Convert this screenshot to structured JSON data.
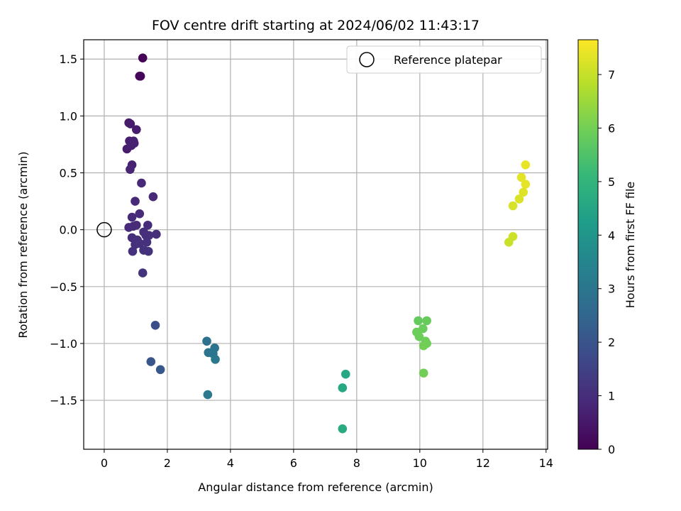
{
  "chart_data": {
    "type": "scatter",
    "title": "FOV centre drift starting at 2024/06/02 11:43:17",
    "xlabel": "Angular distance from reference (arcmin)",
    "ylabel": "Rotation from reference (arcmin)",
    "xlim": [
      -0.65,
      14.05
    ],
    "ylim": [
      -1.93,
      1.67
    ],
    "xticks": [
      0,
      2,
      4,
      6,
      8,
      10,
      12,
      14
    ],
    "xtick_labels": [
      "0",
      "2",
      "4",
      "6",
      "8",
      "10",
      "12",
      "14"
    ],
    "yticks": [
      1.5,
      1.0,
      0.5,
      0.0,
      -0.5,
      -1.0,
      -1.5
    ],
    "ytick_labels": [
      "1.5",
      "1.0",
      "0.5",
      "0.0",
      "−0.5",
      "−1.0",
      "−1.5"
    ],
    "grid": true,
    "legend": {
      "position": "top-right",
      "entries": [
        "Reference platepar"
      ]
    },
    "reference_point": {
      "x": 0,
      "y": 0
    },
    "colorbar": {
      "label": "Hours from first FF file",
      "colormap": "viridis",
      "range": [
        0,
        7.65
      ],
      "ticks": [
        0,
        1,
        2,
        3,
        4,
        5,
        6,
        7
      ],
      "tick_labels": [
        "0",
        "1",
        "2",
        "3",
        "4",
        "5",
        "6",
        "7"
      ]
    },
    "colors": {
      "viridis_stops": [
        "#440154",
        "#482878",
        "#3e4989",
        "#31688e",
        "#26828e",
        "#1f9e89",
        "#35b779",
        "#6ece58",
        "#b5de2b",
        "#fde725"
      ],
      "grid": "#b0b0b0",
      "axes": "#000000"
    },
    "series": [
      {
        "values": [
          {
            "x": 1.22,
            "y": 1.51,
            "h": 0.05
          },
          {
            "x": 1.12,
            "y": 1.35,
            "h": 0.1
          },
          {
            "x": 1.15,
            "y": 1.35,
            "h": 0.12
          },
          {
            "x": 0.78,
            "y": 0.94,
            "h": 0.55
          },
          {
            "x": 0.83,
            "y": 0.93,
            "h": 0.58
          },
          {
            "x": 1.02,
            "y": 0.88,
            "h": 0.62
          },
          {
            "x": 0.72,
            "y": 0.71,
            "h": 0.6
          },
          {
            "x": 0.8,
            "y": 0.78,
            "h": 0.64
          },
          {
            "x": 0.86,
            "y": 0.74,
            "h": 0.66
          },
          {
            "x": 0.93,
            "y": 0.78,
            "h": 0.7
          },
          {
            "x": 0.95,
            "y": 0.76,
            "h": 0.72
          },
          {
            "x": 0.88,
            "y": 0.57,
            "h": 0.75
          },
          {
            "x": 0.82,
            "y": 0.53,
            "h": 0.78
          },
          {
            "x": 1.18,
            "y": 0.41,
            "h": 0.85
          },
          {
            "x": 0.98,
            "y": 0.25,
            "h": 0.88
          },
          {
            "x": 1.55,
            "y": 0.29,
            "h": 0.92
          },
          {
            "x": 1.12,
            "y": 0.14,
            "h": 0.9
          },
          {
            "x": 0.88,
            "y": 0.11,
            "h": 0.92
          },
          {
            "x": 0.78,
            "y": 0.02,
            "h": 0.94
          },
          {
            "x": 0.92,
            "y": 0.03,
            "h": 0.95
          },
          {
            "x": 1.02,
            "y": 0.04,
            "h": 0.96
          },
          {
            "x": 1.38,
            "y": 0.04,
            "h": 0.98
          },
          {
            "x": 1.65,
            "y": -0.04,
            "h": 1.0
          },
          {
            "x": 0.88,
            "y": -0.07,
            "h": 1.0
          },
          {
            "x": 1.05,
            "y": -0.09,
            "h": 1.02
          },
          {
            "x": 1.25,
            "y": -0.02,
            "h": 1.03
          },
          {
            "x": 1.32,
            "y": -0.05,
            "h": 1.04
          },
          {
            "x": 1.42,
            "y": -0.05,
            "h": 1.05
          },
          {
            "x": 0.98,
            "y": -0.13,
            "h": 1.06
          },
          {
            "x": 1.12,
            "y": -0.12,
            "h": 1.07
          },
          {
            "x": 1.35,
            "y": -0.11,
            "h": 1.08
          },
          {
            "x": 0.9,
            "y": -0.19,
            "h": 1.09
          },
          {
            "x": 1.25,
            "y": -0.18,
            "h": 1.1
          },
          {
            "x": 1.4,
            "y": -0.19,
            "h": 1.11
          },
          {
            "x": 1.22,
            "y": -0.38,
            "h": 1.15
          },
          {
            "x": 1.62,
            "y": -0.84,
            "h": 1.85
          },
          {
            "x": 1.48,
            "y": -1.16,
            "h": 2.05
          },
          {
            "x": 1.78,
            "y": -1.23,
            "h": 2.1
          },
          {
            "x": 3.25,
            "y": -0.98,
            "h": 2.85
          },
          {
            "x": 3.5,
            "y": -1.04,
            "h": 2.9
          },
          {
            "x": 3.3,
            "y": -1.08,
            "h": 2.95
          },
          {
            "x": 3.45,
            "y": -1.09,
            "h": 3.0
          },
          {
            "x": 3.52,
            "y": -1.14,
            "h": 3.05
          },
          {
            "x": 3.28,
            "y": -1.45,
            "h": 3.1
          },
          {
            "x": 7.65,
            "y": -1.27,
            "h": 4.55
          },
          {
            "x": 7.55,
            "y": -1.39,
            "h": 4.6
          },
          {
            "x": 7.55,
            "y": -1.75,
            "h": 4.65
          },
          {
            "x": 9.95,
            "y": -0.8,
            "h": 5.8
          },
          {
            "x": 10.22,
            "y": -0.8,
            "h": 5.85
          },
          {
            "x": 10.1,
            "y": -0.87,
            "h": 5.88
          },
          {
            "x": 9.9,
            "y": -0.9,
            "h": 5.9
          },
          {
            "x": 9.98,
            "y": -0.94,
            "h": 5.92
          },
          {
            "x": 10.18,
            "y": -0.98,
            "h": 5.94
          },
          {
            "x": 10.22,
            "y": -1.0,
            "h": 5.96
          },
          {
            "x": 10.12,
            "y": -1.02,
            "h": 5.98
          },
          {
            "x": 10.12,
            "y": -1.26,
            "h": 6.0
          },
          {
            "x": 13.35,
            "y": 0.57,
            "h": 7.4
          },
          {
            "x": 13.22,
            "y": 0.46,
            "h": 7.35
          },
          {
            "x": 13.35,
            "y": 0.4,
            "h": 7.38
          },
          {
            "x": 13.28,
            "y": 0.33,
            "h": 7.3
          },
          {
            "x": 13.15,
            "y": 0.27,
            "h": 7.25
          },
          {
            "x": 12.95,
            "y": 0.21,
            "h": 7.2
          },
          {
            "x": 12.95,
            "y": -0.06,
            "h": 7.1
          },
          {
            "x": 12.82,
            "y": -0.11,
            "h": 7.05
          }
        ]
      }
    ]
  }
}
